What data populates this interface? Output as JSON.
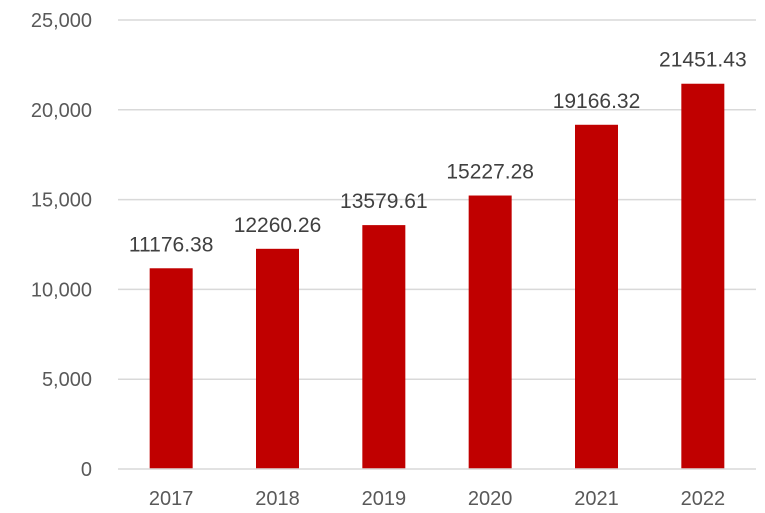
{
  "chart_data": {
    "type": "bar",
    "categories": [
      "2017",
      "2018",
      "2019",
      "2020",
      "2021",
      "2022"
    ],
    "values": [
      11176.38,
      12260.26,
      13579.61,
      15227.28,
      19166.32,
      21451.43
    ],
    "data_labels": [
      "11176.38",
      "12260.26",
      "13579.61",
      "15227.28",
      "19166.32",
      "21451.43"
    ],
    "title": "",
    "xlabel": "",
    "ylabel": "",
    "ylim": [
      0,
      25000
    ],
    "y_ticks": [
      0,
      5000,
      10000,
      15000,
      20000,
      25000
    ],
    "y_tick_labels": [
      "0",
      "5,000",
      "10,000",
      "15,000",
      "20,000",
      "25,000"
    ],
    "grid": true,
    "legend": "none",
    "bar_color": "#C00000"
  }
}
